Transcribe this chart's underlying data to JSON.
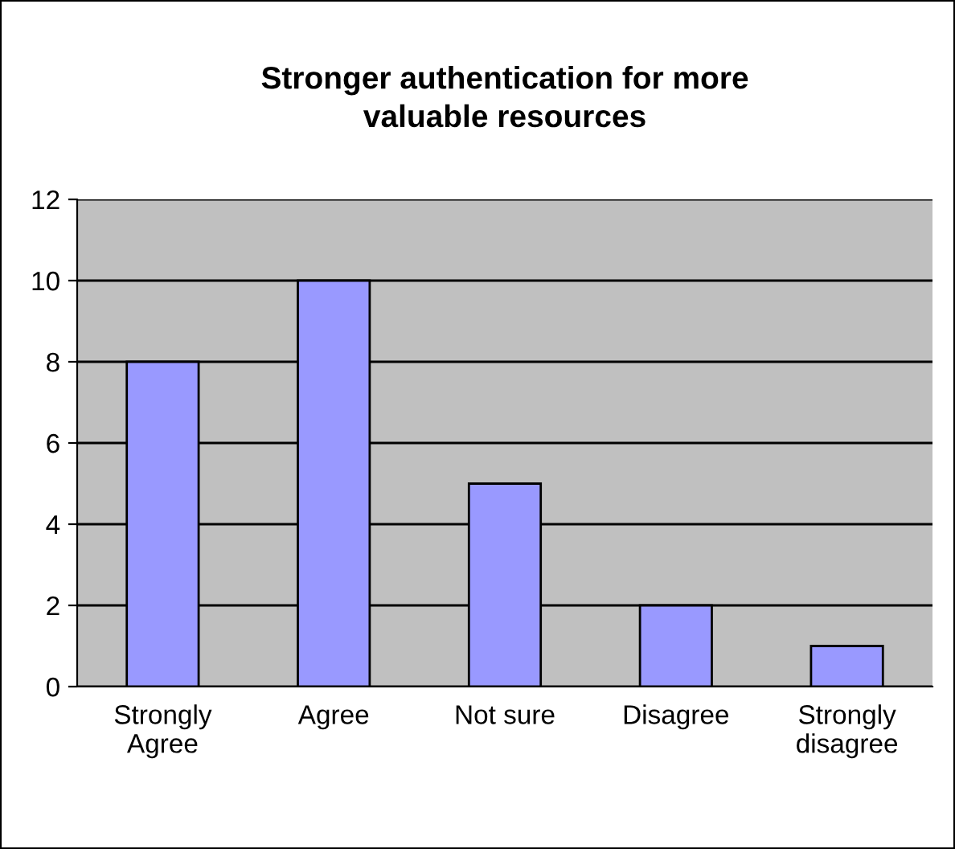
{
  "chart_data": {
    "type": "bar",
    "title": "Stronger authentication for more\nvaluable resources",
    "categories": [
      "Strongly\nAgree",
      "Agree",
      "Not sure",
      "Disagree",
      "Strongly\ndisagree"
    ],
    "values": [
      8,
      10,
      5,
      2,
      1
    ],
    "color": "#9999ff",
    "ylim": [
      0,
      12
    ],
    "yticks": [
      0,
      2,
      4,
      6,
      8,
      10,
      12
    ],
    "grid": "y",
    "legend": false
  }
}
